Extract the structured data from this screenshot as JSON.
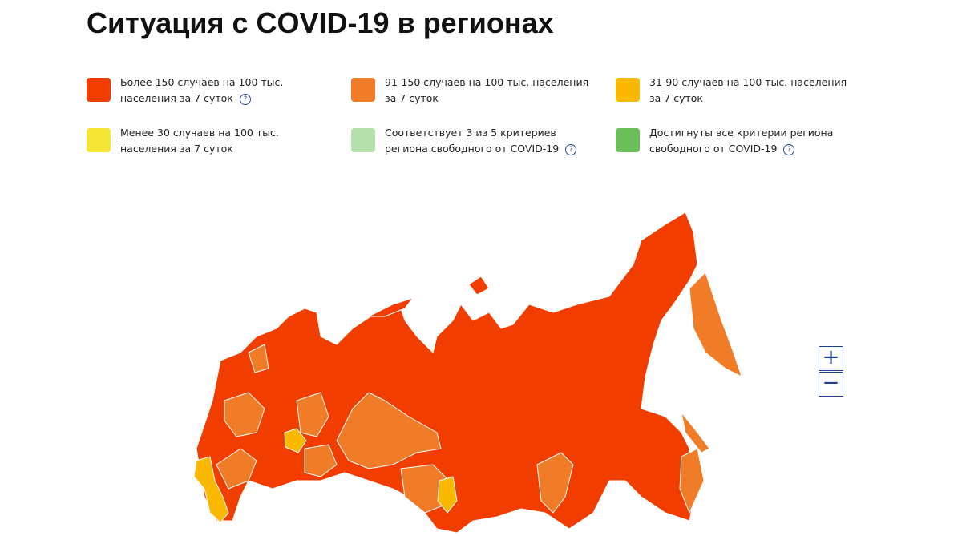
{
  "header": {
    "title": "Ситуация с COVID-19 в регионах"
  },
  "help_icon": "?",
  "legend": [
    {
      "color": "#f23d00",
      "lines": [
        "Более 150 случаев на 100 тыс.",
        "населения за 7 суток"
      ],
      "help": true
    },
    {
      "color": "#f07c28",
      "lines": [
        "91-150 случаев на 100 тыс. населения",
        "за 7 суток"
      ],
      "help": false
    },
    {
      "color": "#fbb800",
      "lines": [
        "31-90 случаев на 100 тыс. населения",
        "за 7 суток"
      ],
      "help": false
    },
    {
      "color": "#f5e534",
      "lines": [
        "Менее 30 случаев на 100 тыс.",
        "населения за 7 суток"
      ],
      "help": false
    },
    {
      "color": "#b5e0ab",
      "lines": [
        "Соответствует 3 из 5 критериев",
        "региона свободного от COVID-19"
      ],
      "help": true
    },
    {
      "color": "#6bbf59",
      "lines": [
        "Достигнуты все критерии региона",
        "свободного от COVID-19"
      ],
      "help": true
    }
  ],
  "zoom": {
    "zoom_in": "+",
    "zoom_out": "−"
  }
}
